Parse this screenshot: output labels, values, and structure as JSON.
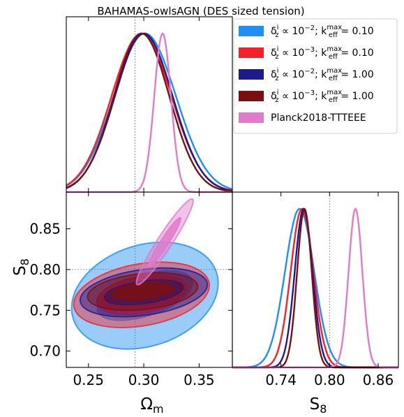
{
  "title": "BAHAMAS-owlsAGN (DES sized tension)",
  "colors": {
    "blue": "#1f8ef5",
    "red": "#f5212a",
    "navy": "#1d1b8c",
    "darkred": "#7a0f0f",
    "pink": "#e07bc9",
    "guide": "#777777"
  },
  "legend": {
    "entries": [
      {
        "pre": "δ",
        "sup": "i",
        "sub": "z",
        "mid": " ∝ 10",
        "exp": "−2",
        "tail": "; k",
        "ksup": "max",
        "ksub": "eff",
        "val": " = 0.10",
        "color": "blue"
      },
      {
        "pre": "δ",
        "sup": "i",
        "sub": "z",
        "mid": " ∝ 10",
        "exp": "−3",
        "tail": "; k",
        "ksup": "max",
        "ksub": "eff",
        "val": " = 0.10",
        "color": "red"
      },
      {
        "pre": "δ",
        "sup": "i",
        "sub": "z",
        "mid": " ∝ 10",
        "exp": "−2",
        "tail": "; k",
        "ksup": "max",
        "ksub": "eff",
        "val": " = 1.00",
        "color": "navy"
      },
      {
        "pre": "δ",
        "sup": "i",
        "sub": "z",
        "mid": " ∝ 10",
        "exp": "−3",
        "tail": "; k",
        "ksup": "max",
        "ksub": "eff",
        "val": " = 1.00",
        "color": "darkred"
      },
      {
        "plain": "Planck2018-TTTEEE",
        "color": "pink"
      }
    ]
  },
  "chart_data": [
    {
      "type": "line",
      "panel": "Omega_m marginal",
      "xlim": [
        0.23,
        0.38
      ],
      "fiducial_x": 0.292,
      "series": [
        {
          "color": "blue",
          "mean": 0.301,
          "sigma": 0.028
        },
        {
          "color": "red",
          "mean": 0.298,
          "sigma": 0.027
        },
        {
          "color": "navy",
          "mean": 0.3,
          "sigma": 0.026
        },
        {
          "color": "darkred",
          "mean": 0.298,
          "sigma": 0.025
        },
        {
          "color": "pink",
          "mean": 0.317,
          "sigma": 0.0075
        }
      ]
    },
    {
      "type": "contour",
      "panel": "Omega_m vs S_8",
      "xlabel": "Ω",
      "xlabel_sub": "m",
      "ylabel": "S",
      "ylabel_sub": "8",
      "xlim": [
        0.23,
        0.38
      ],
      "ylim": [
        0.68,
        0.895
      ],
      "xticks": [
        "0.25",
        "0.30",
        "0.35"
      ],
      "xtick_values": [
        0.25,
        0.3,
        0.35
      ],
      "yticks": [
        "0.70",
        "0.75",
        "0.80",
        "0.85"
      ],
      "ytick_values": [
        0.7,
        0.75,
        0.8,
        0.85
      ],
      "fiducial": [
        0.292,
        0.8
      ],
      "contours": [
        {
          "color": "blue",
          "center": [
            0.301,
            0.768
          ],
          "radii_95": [
            0.068,
            0.062
          ],
          "radii_68": [
            0.045,
            0.025
          ],
          "angle_deg": 18
        },
        {
          "color": "red",
          "center": [
            0.298,
            0.769
          ],
          "radii_95": [
            0.062,
            0.038
          ],
          "radii_68": [
            0.041,
            0.023
          ],
          "angle_deg": 10
        },
        {
          "color": "navy",
          "center": [
            0.3,
            0.772
          ],
          "radii_95": [
            0.058,
            0.028
          ],
          "radii_68": [
            0.036,
            0.014
          ],
          "angle_deg": 8
        },
        {
          "color": "darkred",
          "center": [
            0.299,
            0.773
          ],
          "radii_95": [
            0.05,
            0.022
          ],
          "radii_68": [
            0.028,
            0.01
          ],
          "angle_deg": 6
        },
        {
          "color": "pink",
          "center": [
            0.319,
            0.834
          ],
          "radii_95": [
            0.046,
            0.009
          ],
          "radii_68": [
            0.026,
            0.005
          ],
          "angle_deg": 57
        }
      ]
    },
    {
      "type": "line",
      "panel": "S_8 marginal",
      "xlabel": "S",
      "xlabel_sub": "8",
      "xlim": [
        0.68,
        0.885
      ],
      "xticks": [
        "0.74",
        "0.80",
        "0.86"
      ],
      "xtick_values": [
        0.74,
        0.8,
        0.86
      ],
      "fiducial_x": 0.8,
      "series": [
        {
          "color": "blue",
          "mean": 0.763,
          "sigma": 0.018
        },
        {
          "color": "red",
          "mean": 0.766,
          "sigma": 0.014
        },
        {
          "color": "navy",
          "mean": 0.768,
          "sigma": 0.011
        },
        {
          "color": "darkred",
          "mean": 0.769,
          "sigma": 0.009
        },
        {
          "color": "pink",
          "mean": 0.832,
          "sigma": 0.0085
        }
      ]
    }
  ]
}
